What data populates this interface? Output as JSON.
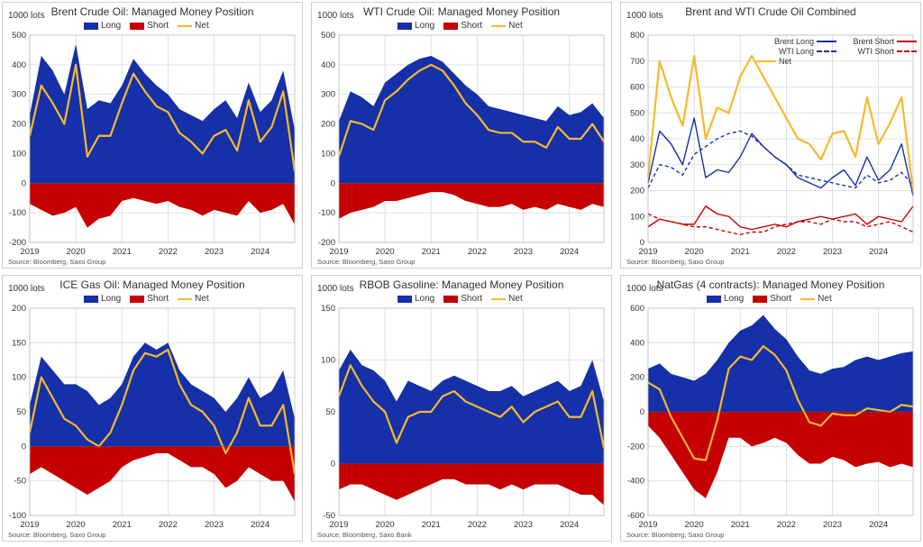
{
  "colors": {
    "long": "#1530a8",
    "short": "#c40000",
    "net": "#f6b92b",
    "grid": "#d8d8d8"
  },
  "chart_data": [
    {
      "type": "area",
      "title": "Brent Crude Oil: Managed Money Position",
      "unit_label": "1000 lots",
      "source": "Source: Bloomberg, Saxo Group",
      "legend": [
        "Long",
        "Short",
        "Net"
      ],
      "x_labels": [
        "2019",
        "2020",
        "2021",
        "2022",
        "2023",
        "2024"
      ],
      "xlim": [
        2019.0,
        2024.75
      ],
      "ylim": [
        -200,
        500
      ],
      "yticks": [
        -200,
        -100,
        0,
        100,
        200,
        300,
        400,
        500
      ],
      "x": [
        2019.0,
        2019.25,
        2019.5,
        2019.75,
        2020.0,
        2020.25,
        2020.5,
        2020.75,
        2021.0,
        2021.25,
        2021.5,
        2021.75,
        2022.0,
        2022.25,
        2022.5,
        2022.75,
        2023.0,
        2023.25,
        2023.5,
        2023.75,
        2024.0,
        2024.25,
        2024.5,
        2024.75
      ],
      "series": [
        {
          "name": "Long",
          "values": [
            230,
            430,
            380,
            300,
            470,
            250,
            280,
            270,
            330,
            420,
            370,
            330,
            300,
            250,
            230,
            210,
            250,
            280,
            220,
            340,
            240,
            280,
            380,
            180
          ]
        },
        {
          "name": "Short",
          "values": [
            -70,
            -90,
            -110,
            -100,
            -80,
            -150,
            -120,
            -110,
            -60,
            -50,
            -60,
            -70,
            -60,
            -80,
            -90,
            -110,
            -90,
            -100,
            -110,
            -60,
            -100,
            -90,
            -70,
            -140
          ]
        },
        {
          "name": "Net",
          "values": [
            160,
            330,
            270,
            200,
            400,
            90,
            160,
            160,
            270,
            370,
            310,
            260,
            240,
            170,
            140,
            100,
            160,
            180,
            110,
            280,
            140,
            190,
            310,
            40
          ]
        }
      ]
    },
    {
      "type": "area",
      "title": "WTI Crude Oil: Managed Money Position",
      "unit_label": "1000 lots",
      "source": "Source: Bloomberg, Saxo Group",
      "legend": [
        "Long",
        "Short",
        "Net"
      ],
      "x_labels": [
        "2019",
        "2020",
        "2021",
        "2022",
        "2023",
        "2024"
      ],
      "xlim": [
        2019.0,
        2024.75
      ],
      "ylim": [
        -200,
        500
      ],
      "yticks": [
        -200,
        -100,
        0,
        100,
        200,
        300,
        400,
        500
      ],
      "x": [
        2019.0,
        2019.25,
        2019.5,
        2019.75,
        2020.0,
        2020.25,
        2020.5,
        2020.75,
        2021.0,
        2021.25,
        2021.5,
        2021.75,
        2022.0,
        2022.25,
        2022.5,
        2022.75,
        2023.0,
        2023.25,
        2023.5,
        2023.75,
        2024.0,
        2024.25,
        2024.5,
        2024.75
      ],
      "series": [
        {
          "name": "Long",
          "values": [
            210,
            310,
            290,
            260,
            340,
            370,
            400,
            420,
            430,
            410,
            370,
            330,
            300,
            260,
            250,
            240,
            230,
            220,
            210,
            260,
            230,
            240,
            270,
            220
          ]
        },
        {
          "name": "Short",
          "values": [
            -120,
            -100,
            -90,
            -80,
            -60,
            -60,
            -50,
            -40,
            -30,
            -30,
            -40,
            -60,
            -70,
            -80,
            -80,
            -70,
            -90,
            -80,
            -90,
            -70,
            -80,
            -90,
            -70,
            -80
          ]
        },
        {
          "name": "Net",
          "values": [
            90,
            210,
            200,
            180,
            280,
            310,
            350,
            380,
            400,
            380,
            330,
            270,
            230,
            180,
            170,
            170,
            140,
            140,
            120,
            190,
            150,
            150,
            200,
            140
          ]
        }
      ]
    },
    {
      "type": "line",
      "title": "Brent and WTI Crude Oil Combined",
      "unit_label": "1000 lots",
      "source": "Source: Bloomberg, Saxo Group",
      "legend": [
        "Brent Long",
        "Brent Short",
        "WTI Long",
        "WTI Short",
        "Net"
      ],
      "x_labels": [
        "2019",
        "2020",
        "2021",
        "2022",
        "2023",
        "2024"
      ],
      "xlim": [
        2019.0,
        2024.75
      ],
      "ylim": [
        0,
        800
      ],
      "yticks": [
        0,
        100,
        200,
        300,
        400,
        500,
        600,
        700,
        800
      ],
      "x": [
        2019.0,
        2019.25,
        2019.5,
        2019.75,
        2020.0,
        2020.25,
        2020.5,
        2020.75,
        2021.0,
        2021.25,
        2021.5,
        2021.75,
        2022.0,
        2022.25,
        2022.5,
        2022.75,
        2023.0,
        2023.25,
        2023.5,
        2023.75,
        2024.0,
        2024.25,
        2024.5,
        2024.75
      ],
      "series": [
        {
          "name": "Brent Long",
          "values": [
            230,
            430,
            380,
            300,
            480,
            250,
            280,
            270,
            330,
            420,
            370,
            330,
            300,
            250,
            230,
            210,
            250,
            280,
            220,
            330,
            240,
            280,
            380,
            180
          ]
        },
        {
          "name": "Brent Short",
          "values": [
            60,
            90,
            80,
            70,
            70,
            140,
            110,
            100,
            60,
            50,
            60,
            70,
            60,
            80,
            90,
            100,
            90,
            100,
            110,
            70,
            100,
            90,
            80,
            140
          ]
        },
        {
          "name": "WTI Long",
          "values": [
            210,
            300,
            290,
            260,
            340,
            370,
            400,
            420,
            430,
            410,
            370,
            330,
            300,
            260,
            250,
            240,
            230,
            220,
            210,
            260,
            230,
            240,
            270,
            220
          ]
        },
        {
          "name": "WTI Short",
          "values": [
            110,
            90,
            80,
            70,
            60,
            60,
            50,
            40,
            30,
            40,
            40,
            60,
            70,
            80,
            80,
            70,
            90,
            80,
            80,
            60,
            70,
            80,
            60,
            40
          ]
        },
        {
          "name": "Net",
          "values": [
            250,
            700,
            560,
            450,
            720,
            400,
            520,
            500,
            640,
            720,
            640,
            560,
            480,
            400,
            380,
            320,
            420,
            430,
            330,
            560,
            380,
            460,
            560,
            200
          ]
        }
      ]
    },
    {
      "type": "area",
      "title": "ICE Gas Oil: Managed Money Position",
      "unit_label": "1000 lots",
      "source": "Source: Bloomberg, Saxo Group",
      "legend": [
        "Long",
        "Short",
        "Net"
      ],
      "x_labels": [
        "2019",
        "2020",
        "2021",
        "2022",
        "2023",
        "2024"
      ],
      "xlim": [
        2019.0,
        2024.75
      ],
      "ylim": [
        -100,
        200
      ],
      "yticks": [
        -100,
        -50,
        0,
        50,
        100,
        150,
        200
      ],
      "x": [
        2019.0,
        2019.25,
        2019.5,
        2019.75,
        2020.0,
        2020.25,
        2020.5,
        2020.75,
        2021.0,
        2021.25,
        2021.5,
        2021.75,
        2022.0,
        2022.25,
        2022.5,
        2022.75,
        2023.0,
        2023.25,
        2023.5,
        2023.75,
        2024.0,
        2024.25,
        2024.5,
        2024.75
      ],
      "series": [
        {
          "name": "Long",
          "values": [
            60,
            130,
            110,
            90,
            90,
            80,
            60,
            70,
            90,
            130,
            150,
            140,
            150,
            110,
            90,
            80,
            70,
            50,
            70,
            100,
            70,
            80,
            110,
            40
          ]
        },
        {
          "name": "Short",
          "values": [
            -40,
            -30,
            -40,
            -50,
            -60,
            -70,
            -60,
            -50,
            -30,
            -20,
            -15,
            -10,
            -10,
            -20,
            -30,
            -30,
            -40,
            -60,
            -50,
            -30,
            -40,
            -50,
            -50,
            -80
          ]
        },
        {
          "name": "Net",
          "values": [
            20,
            100,
            70,
            40,
            30,
            10,
            0,
            20,
            60,
            110,
            135,
            130,
            140,
            90,
            60,
            50,
            30,
            -10,
            20,
            70,
            30,
            30,
            60,
            -40
          ]
        }
      ]
    },
    {
      "type": "area",
      "title": "RBOB Gasoline: Managed Money Position",
      "unit_label": "1000 lots",
      "source": "Source: Bloomberg, Saxo Bank",
      "legend": [
        "Long",
        "Short",
        "Net"
      ],
      "x_labels": [
        "2019",
        "2020",
        "2021",
        "2022",
        "2023",
        "2024"
      ],
      "xlim": [
        2019.0,
        2024.75
      ],
      "ylim": [
        -50,
        150
      ],
      "yticks": [
        -50,
        0,
        50,
        100,
        150
      ],
      "x": [
        2019.0,
        2019.25,
        2019.5,
        2019.75,
        2020.0,
        2020.25,
        2020.5,
        2020.75,
        2021.0,
        2021.25,
        2021.5,
        2021.75,
        2022.0,
        2022.25,
        2022.5,
        2022.75,
        2023.0,
        2023.25,
        2023.5,
        2023.75,
        2024.0,
        2024.25,
        2024.5,
        2024.75
      ],
      "series": [
        {
          "name": "Long",
          "values": [
            90,
            110,
            95,
            90,
            80,
            60,
            80,
            75,
            70,
            80,
            85,
            80,
            75,
            70,
            70,
            75,
            65,
            70,
            75,
            80,
            70,
            75,
            100,
            60
          ]
        },
        {
          "name": "Short",
          "values": [
            -25,
            -20,
            -20,
            -25,
            -30,
            -35,
            -30,
            -25,
            -20,
            -15,
            -15,
            -20,
            -20,
            -20,
            -25,
            -20,
            -25,
            -20,
            -20,
            -20,
            -25,
            -30,
            -30,
            -40
          ]
        },
        {
          "name": "Net",
          "values": [
            65,
            95,
            75,
            60,
            50,
            20,
            45,
            50,
            50,
            65,
            70,
            60,
            55,
            50,
            45,
            55,
            40,
            50,
            55,
            60,
            45,
            45,
            70,
            15
          ]
        }
      ]
    },
    {
      "type": "area",
      "title": "NatGas (4 contracts): Managed Money Position",
      "unit_label": "1000 lots",
      "source": "Source: Bloomberg, Saxo Group",
      "legend": [
        "Long",
        "Short",
        "Net"
      ],
      "x_labels": [
        "2019",
        "2020",
        "2021",
        "2022",
        "2023",
        "2024"
      ],
      "xlim": [
        2019.0,
        2024.75
      ],
      "ylim": [
        -600,
        600
      ],
      "yticks": [
        -600,
        -400,
        -200,
        0,
        200,
        400,
        600
      ],
      "x": [
        2019.0,
        2019.25,
        2019.5,
        2019.75,
        2020.0,
        2020.25,
        2020.5,
        2020.75,
        2021.0,
        2021.25,
        2021.5,
        2021.75,
        2022.0,
        2022.25,
        2022.5,
        2022.75,
        2023.0,
        2023.25,
        2023.5,
        2023.75,
        2024.0,
        2024.25,
        2024.5,
        2024.75
      ],
      "series": [
        {
          "name": "Long",
          "values": [
            250,
            280,
            220,
            200,
            180,
            220,
            300,
            400,
            470,
            500,
            560,
            480,
            420,
            320,
            240,
            220,
            250,
            260,
            300,
            320,
            300,
            320,
            340,
            350
          ]
        },
        {
          "name": "Short",
          "values": [
            -80,
            -150,
            -250,
            -350,
            -450,
            -500,
            -350,
            -150,
            -150,
            -200,
            -180,
            -150,
            -180,
            -250,
            -300,
            -300,
            -260,
            -280,
            -320,
            -300,
            -290,
            -320,
            -300,
            -320
          ]
        },
        {
          "name": "Net",
          "values": [
            170,
            130,
            -30,
            -150,
            -270,
            -280,
            -50,
            250,
            320,
            300,
            380,
            330,
            240,
            70,
            -60,
            -80,
            -10,
            -20,
            -20,
            20,
            10,
            0,
            40,
            30
          ]
        }
      ]
    }
  ]
}
